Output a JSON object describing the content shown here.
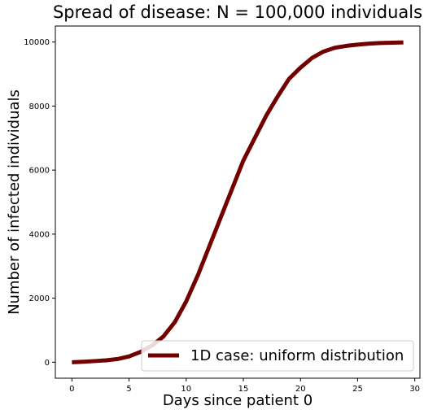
{
  "chart_data": {
    "type": "line",
    "title": "Spread of disease: N = 100,000 individuals",
    "xlabel": "Days since patient 0",
    "ylabel": "Number of infected individuals",
    "xlim": [
      -1.45,
      30.45
    ],
    "ylim": [
      -500,
      10500
    ],
    "xticks": [
      0,
      5,
      10,
      15,
      20,
      25,
      30
    ],
    "yticks": [
      0,
      2000,
      4000,
      6000,
      8000,
      10000
    ],
    "grid": false,
    "legend_position": "lower-right",
    "series": [
      {
        "name": "1D case: uniform distribution",
        "color": "#730000",
        "x": [
          0,
          1,
          2,
          3,
          4,
          5,
          6,
          7,
          8,
          9,
          10,
          11,
          12,
          13,
          14,
          15,
          16,
          17,
          18,
          19,
          20,
          21,
          22,
          23,
          24,
          25,
          26,
          27,
          28,
          29
        ],
        "y": [
          0,
          15,
          35,
          60,
          100,
          180,
          320,
          520,
          800,
          1250,
          1900,
          2700,
          3600,
          4500,
          5400,
          6300,
          7000,
          7700,
          8300,
          8850,
          9200,
          9500,
          9700,
          9820,
          9880,
          9920,
          9950,
          9970,
          9980,
          9990
        ]
      }
    ]
  }
}
